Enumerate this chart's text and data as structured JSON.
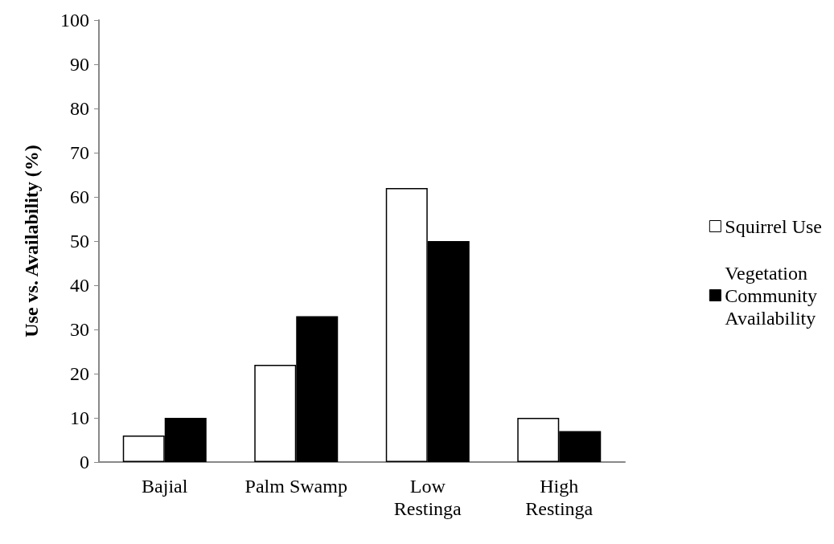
{
  "chart_data": {
    "type": "bar",
    "ylabel": "Use vs. Availability (%)",
    "categories": [
      "Bajial",
      "Palm Swamp",
      "Low\nRestinga",
      "High\nRestinga"
    ],
    "series": [
      {
        "name": "Squirrel Use",
        "color": "#ffffff",
        "values": [
          6,
          22,
          62,
          10
        ]
      },
      {
        "name": "Vegetation\nCommunity\nAvailability",
        "color": "#000000",
        "values": [
          10,
          33,
          50,
          7
        ]
      }
    ],
    "ylim": [
      0,
      100
    ],
    "yticks": [
      0,
      10,
      20,
      30,
      40,
      50,
      60,
      70,
      80,
      90,
      100
    ],
    "grid": false,
    "legend": "right"
  }
}
